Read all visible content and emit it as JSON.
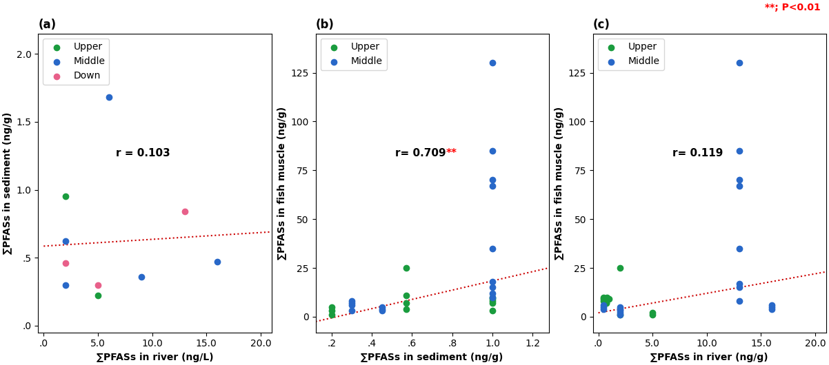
{
  "chart_data": [
    {
      "type": "scatter",
      "title": "(a)",
      "x_label": "∑PFASs in river (ng/L)",
      "y_label": "∑PFASs in sediment (ng/g)",
      "xlim": [
        -0.5,
        21
      ],
      "ylim": [
        -0.05,
        2.15
      ],
      "xticks": [
        {
          "value": 0,
          "label": ".0"
        },
        5.0,
        10.0,
        15.0,
        20.0
      ],
      "yticks": [
        {
          "value": 0.0,
          "label": ".0"
        },
        {
          "value": 0.5,
          "label": ".5"
        },
        1.0,
        1.5,
        2.0
      ],
      "legend": "upper left",
      "series": [
        {
          "name": "Upper",
          "color": "#1a9c3e",
          "x": [
            2.0,
            5.0
          ],
          "values": [
            0.95,
            0.22
          ]
        },
        {
          "name": "Middle",
          "color": "#2868c8",
          "x": [
            2.0,
            2.0,
            6.0,
            9.0,
            16.0
          ],
          "values": [
            0.62,
            0.3,
            1.68,
            0.36,
            0.47
          ]
        },
        {
          "name": "Down",
          "color": "#e8608a",
          "x": [
            2.0,
            5.0,
            13.0
          ],
          "values": [
            0.46,
            0.3,
            0.84
          ]
        },
        {
          "type": "line",
          "color": "#cc0000",
          "line_style": "dotted",
          "x": [
            0,
            21
          ],
          "values": [
            0.585,
            0.69
          ]
        }
      ],
      "annotations": [
        {
          "text": "r = 0.103"
        }
      ]
    },
    {
      "type": "scatter",
      "title": "(b)",
      "x_label": "∑PFASs in sediment (ng/g)",
      "y_label": "∑PFASs in fish muscle (ng/g)",
      "xlim": [
        0.12,
        1.28
      ],
      "ylim": [
        -8,
        145
      ],
      "xticks": [
        {
          "value": 0.2,
          "label": ".2"
        },
        {
          "value": 0.4,
          "label": ".4"
        },
        {
          "value": 0.6,
          "label": ".6"
        },
        {
          "value": 0.8,
          "label": ".8"
        },
        1.0,
        1.2
      ],
      "yticks": [
        0,
        25,
        50,
        75,
        100,
        125
      ],
      "legend": "upper left",
      "series": [
        {
          "name": "Upper",
          "color": "#1a9c3e",
          "x": [
            0.2,
            0.2,
            0.2,
            0.57,
            0.57,
            0.57,
            0.57,
            1.0,
            1.0,
            1.0,
            1.0,
            1.0
          ],
          "values": [
            3,
            1,
            5,
            25,
            4,
            7,
            11,
            8,
            9,
            10,
            7,
            3
          ]
        },
        {
          "name": "Middle",
          "color": "#2868c8",
          "x": [
            0.3,
            0.3,
            0.3,
            0.3,
            0.45,
            0.45,
            0.45,
            1.0,
            1.0,
            1.0,
            1.0,
            1.0,
            1.0,
            1.0,
            1.0,
            1.0
          ],
          "values": [
            7,
            8,
            6,
            3,
            4,
            5,
            3,
            130,
            85,
            70,
            67,
            35,
            18,
            15,
            12,
            10
          ]
        },
        {
          "type": "line",
          "color": "#cc0000",
          "line_style": "dotted",
          "x": [
            0.12,
            1.28
          ],
          "values": [
            -2.5,
            25
          ]
        }
      ],
      "annotations": [
        {
          "text": "r= 0.709"
        },
        {
          "text": "**",
          "color": "red"
        }
      ]
    },
    {
      "type": "scatter",
      "title": "(c)",
      "x_label": "∑PFASs in river (ng/g)",
      "y_label": "∑PFASs in fish muscle (ng/g)",
      "xlim": [
        -0.5,
        21
      ],
      "ylim": [
        -8,
        145
      ],
      "xticks": [
        {
          "value": 0,
          "label": ".0"
        },
        5.0,
        10.0,
        15.0,
        20.0
      ],
      "yticks": [
        0,
        25,
        50,
        75,
        100,
        125
      ],
      "legend": "upper left",
      "series": [
        {
          "name": "Upper",
          "color": "#1a9c3e",
          "x": [
            0.5,
            0.5,
            0.5,
            0.7,
            0.7,
            0.7,
            0.8,
            0.8,
            1.0,
            2.0,
            2.0,
            5.0,
            5.0
          ],
          "values": [
            8,
            9,
            10,
            7,
            8,
            7,
            9,
            10,
            9,
            25,
            1,
            2,
            1
          ]
        },
        {
          "name": "Middle",
          "color": "#2868c8",
          "x": [
            0.5,
            0.5,
            0.5,
            2.0,
            2.0,
            2.0,
            2.0,
            2.0,
            13.0,
            13.0,
            13.0,
            13.0,
            13.0,
            13.0,
            13.0,
            13.0,
            16.0,
            16.0,
            16.0
          ],
          "values": [
            5,
            6,
            4,
            5,
            4,
            3,
            2,
            1,
            130,
            85,
            70,
            67,
            35,
            17,
            15,
            8,
            5,
            6,
            4
          ]
        },
        {
          "type": "line",
          "color": "#cc0000",
          "line_style": "dotted",
          "x": [
            0,
            21
          ],
          "values": [
            2,
            23
          ]
        }
      ],
      "annotations": [
        {
          "text": "r= 0.119"
        }
      ]
    }
  ],
  "annotations": [
    {
      "text": "**; P<0.01",
      "color": "red"
    }
  ]
}
